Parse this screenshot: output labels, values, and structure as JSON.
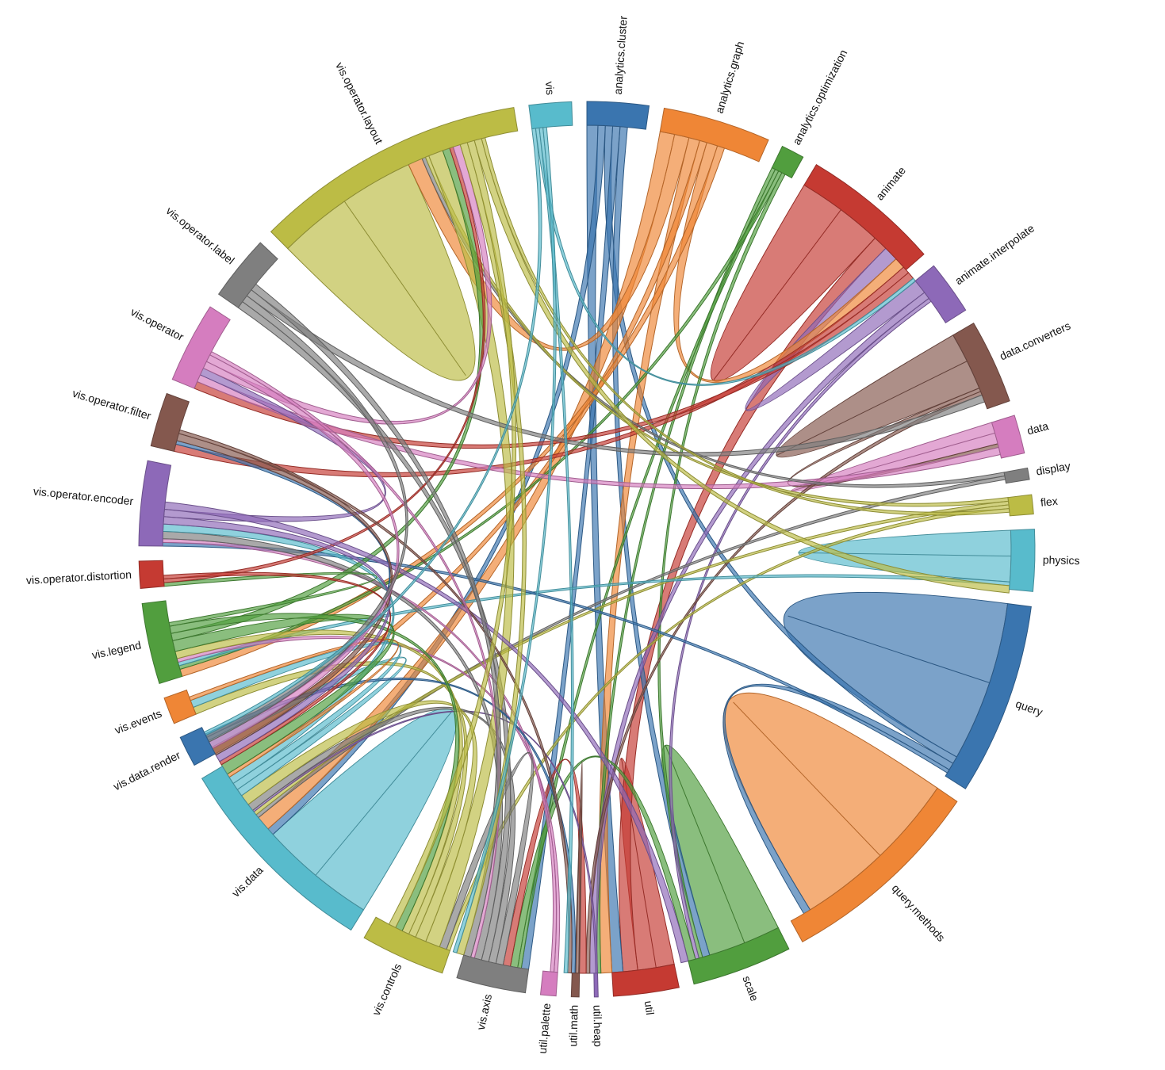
{
  "chart_data": {
    "type": "chord",
    "groups": [
      {
        "name": "analytics.cluster",
        "color": "#3a75af",
        "value": 8
      },
      {
        "name": "analytics.graph",
        "color": "#ef8636",
        "value": 14
      },
      {
        "name": "analytics.optimization",
        "color": "#519e3e",
        "value": 3
      },
      {
        "name": "animate",
        "color": "#c53a32",
        "value": 18
      },
      {
        "name": "animate.interpolate",
        "color": "#8d69b8",
        "value": 7
      },
      {
        "name": "data.converters",
        "color": "#84584e",
        "value": 11
      },
      {
        "name": "data",
        "color": "#d57dbf",
        "value": 5
      },
      {
        "name": "display",
        "color": "#7f7f7f",
        "value": 1.5
      },
      {
        "name": "flex",
        "color": "#bcbc45",
        "value": 2.5
      },
      {
        "name": "physics",
        "color": "#58bbcc",
        "value": 8
      },
      {
        "name": "query",
        "color": "#3a75af",
        "value": 25
      },
      {
        "name": "query.methods",
        "color": "#ef8636",
        "value": 27
      },
      {
        "name": "scale",
        "color": "#519e3e",
        "value": 13
      },
      {
        "name": "util",
        "color": "#c53a32",
        "value": 8.5
      },
      {
        "name": "util.heap",
        "color": "#8d69b8",
        "value": 0.5
      },
      {
        "name": "util.math",
        "color": "#84584e",
        "value": 1
      },
      {
        "name": "util.palette",
        "color": "#d57dbf",
        "value": 2
      },
      {
        "name": "vis.axis",
        "color": "#7f7f7f",
        "value": 9
      },
      {
        "name": "vis.controls",
        "color": "#bcbc45",
        "value": 11
      },
      {
        "name": "vis.data",
        "color": "#58bbcc",
        "value": 27.5
      },
      {
        "name": "vis.data.render",
        "color": "#3a75af",
        "value": 4
      },
      {
        "name": "vis.events",
        "color": "#ef8636",
        "value": 3.5
      },
      {
        "name": "vis.legend",
        "color": "#519e3e",
        "value": 10.5
      },
      {
        "name": "vis.operator.distortion",
        "color": "#c53a32",
        "value": 3.5
      },
      {
        "name": "vis.operator.encoder",
        "color": "#8d69b8",
        "value": 11
      },
      {
        "name": "vis.operator.filter",
        "color": "#84584e",
        "value": 7
      },
      {
        "name": "vis.operator",
        "color": "#d57dbf",
        "value": 10.5
      },
      {
        "name": "vis.operator.label",
        "color": "#7f7f7f",
        "value": 8.5
      },
      {
        "name": "vis.operator.layout",
        "color": "#bcbc45",
        "value": 35.5
      },
      {
        "name": "vis",
        "color": "#58bbcc",
        "value": 5.5
      }
    ],
    "chords": [
      {
        "source": "query",
        "target": "query",
        "value": 11
      },
      {
        "source": "query.methods",
        "target": "query.methods",
        "value": 12
      },
      {
        "source": "physics",
        "target": "physics",
        "value": 3.5
      },
      {
        "source": "scale",
        "target": "scale",
        "value": 5
      },
      {
        "source": "util",
        "target": "util",
        "value": 2.5
      },
      {
        "source": "animate",
        "target": "animate",
        "value": 6
      },
      {
        "source": "data.converters",
        "target": "data.converters",
        "value": 4
      },
      {
        "source": "data",
        "target": "data",
        "value": 1.5
      },
      {
        "source": "vis.data",
        "target": "vis.data",
        "value": 8
      },
      {
        "source": "vis.operator.layout",
        "target": "vis.operator.layout",
        "value": 10
      },
      {
        "source": "util",
        "target": "animate",
        "value": 2
      },
      {
        "source": "animate.interpolate",
        "target": "animate",
        "value": 2
      },
      {
        "source": "analytics.cluster",
        "target": "util",
        "value": 1.5
      },
      {
        "source": "analytics.cluster",
        "target": "vis.data",
        "value": 1
      },
      {
        "source": "analytics.cluster",
        "target": "query",
        "value": 1
      },
      {
        "source": "analytics.cluster",
        "target": "vis.axis",
        "value": 1
      },
      {
        "source": "analytics.cluster",
        "target": "scale",
        "value": 1
      },
      {
        "source": "analytics.graph",
        "target": "vis.data",
        "value": 2
      },
      {
        "source": "analytics.graph",
        "target": "vis.operator.layout",
        "value": 2
      },
      {
        "source": "analytics.graph",
        "target": "util",
        "value": 1.5
      },
      {
        "source": "analytics.graph",
        "target": "vis.data.render",
        "value": 1
      },
      {
        "source": "analytics.graph",
        "target": "animate",
        "value": 1.5
      },
      {
        "source": "analytics.graph",
        "target": "vis.legend",
        "value": 1
      },
      {
        "source": "analytics.optimization",
        "target": "util",
        "value": 0.5
      },
      {
        "source": "analytics.optimization",
        "target": "vis.axis",
        "value": 0.5
      },
      {
        "source": "analytics.optimization",
        "target": "vis.legend",
        "value": 0.5
      },
      {
        "source": "analytics.optimization",
        "target": "scale",
        "value": 0.5
      },
      {
        "source": "animate",
        "target": "vis.operator.filter",
        "value": 1
      },
      {
        "source": "animate",
        "target": "vis.operator",
        "value": 1
      },
      {
        "source": "animate.interpolate",
        "target": "util",
        "value": 1
      },
      {
        "source": "animate.interpolate",
        "target": "scale",
        "value": 0.5
      },
      {
        "source": "data.converters",
        "target": "data",
        "value": 0.5
      },
      {
        "source": "data.converters",
        "target": "util",
        "value": 0.5
      },
      {
        "source": "data",
        "target": "vis.operator",
        "value": 1
      },
      {
        "source": "display",
        "target": "vis.operator.layout",
        "value": 0.5
      },
      {
        "source": "display",
        "target": "vis.data",
        "value": 0.5
      },
      {
        "source": "flex",
        "target": "vis.operator.layout",
        "value": 0.5
      },
      {
        "source": "flex",
        "target": "vis.data",
        "value": 0.5
      },
      {
        "source": "flex",
        "target": "vis.controls",
        "value": 0.5
      },
      {
        "source": "physics",
        "target": "vis.legend",
        "value": 0.5
      },
      {
        "source": "query",
        "target": "query.methods",
        "value": 1
      },
      {
        "source": "query",
        "target": "vis.operator.encoder",
        "value": 0.5
      },
      {
        "source": "scale",
        "target": "vis.axis",
        "value": 1
      },
      {
        "source": "util",
        "target": "vis.axis",
        "value": 1
      },
      {
        "source": "util.heap",
        "target": "vis.data",
        "value": 0.25
      },
      {
        "source": "util.math",
        "target": "util",
        "value": 0.5
      },
      {
        "source": "util.palette",
        "target": "vis.legend",
        "value": 0.5
      },
      {
        "source": "util.palette",
        "target": "vis.operator.encoder",
        "value": 0.5
      },
      {
        "source": "vis.axis",
        "target": "vis.controls",
        "value": 1
      },
      {
        "source": "vis.axis",
        "target": "vis.data",
        "value": 1
      },
      {
        "source": "vis.axis",
        "target": "vis.operator.label",
        "value": 1
      },
      {
        "source": "vis.axis",
        "target": "vis.operator.encoder",
        "value": 1
      },
      {
        "source": "vis.controls",
        "target": "vis.operator.layout",
        "value": 2
      },
      {
        "source": "vis.controls",
        "target": "vis.data",
        "value": 1.5
      },
      {
        "source": "vis.controls",
        "target": "vis.events",
        "value": 1
      },
      {
        "source": "vis.controls",
        "target": "vis.legend",
        "value": 1
      },
      {
        "source": "vis.data",
        "target": "vis.data.render",
        "value": 1
      },
      {
        "source": "vis.data",
        "target": "vis.events",
        "value": 1
      },
      {
        "source": "vis.data",
        "target": "vis.operator.encoder",
        "value": 1
      },
      {
        "source": "vis.data.render",
        "target": "vis.operator.filter",
        "value": 0.5
      },
      {
        "source": "vis.data.render",
        "target": "util",
        "value": 0.5
      },
      {
        "source": "vis.events",
        "target": "vis.data",
        "value": 0.5
      },
      {
        "source": "vis.legend",
        "target": "vis.data",
        "value": 1.5
      },
      {
        "source": "vis.legend",
        "target": "vis.operator.layout",
        "value": 1
      },
      {
        "source": "vis.legend",
        "target": "vis.controls",
        "value": 1
      },
      {
        "source": "vis.legend",
        "target": "vis.operator.distortion",
        "value": 0.5
      },
      {
        "source": "vis.operator.distortion",
        "target": "vis.operator.layout",
        "value": 0.5
      },
      {
        "source": "vis.operator.distortion",
        "target": "vis.data",
        "value": 0.5
      },
      {
        "source": "vis.operator.encoder",
        "target": "vis.data",
        "value": 1
      },
      {
        "source": "vis.operator.encoder",
        "target": "vis.operator",
        "value": 1
      },
      {
        "source": "vis.operator.encoder",
        "target": "scale",
        "value": 1
      },
      {
        "source": "vis.operator.filter",
        "target": "vis.data",
        "value": 1
      },
      {
        "source": "vis.operator.filter",
        "target": "util",
        "value": 0.5
      },
      {
        "source": "vis.operator",
        "target": "vis.operator.layout",
        "value": 1
      },
      {
        "source": "vis.operator",
        "target": "vis.data",
        "value": 1
      },
      {
        "source": "vis.operator",
        "target": "vis.axis",
        "value": 0.5
      },
      {
        "source": "vis.operator.label",
        "target": "vis.data",
        "value": 1
      },
      {
        "source": "vis.operator.label",
        "target": "data.converters",
        "value": 1
      },
      {
        "source": "vis.operator.label",
        "target": "vis.axis",
        "value": 1
      },
      {
        "source": "vis.operator.layout",
        "target": "vis.axis",
        "value": 1
      },
      {
        "source": "vis.operator.layout",
        "target": "vis.controls",
        "value": 1
      },
      {
        "source": "vis.operator.layout",
        "target": "physics",
        "value": 1
      },
      {
        "source": "vis.operator.layout",
        "target": "flex",
        "value": 0.5
      },
      {
        "source": "vis",
        "target": "vis.data",
        "value": 0.5
      },
      {
        "source": "vis",
        "target": "animate",
        "value": 0.5
      },
      {
        "source": "vis",
        "target": "util",
        "value": 0.5
      },
      {
        "source": "vis",
        "target": "vis.axis",
        "value": 0.5
      }
    ]
  }
}
